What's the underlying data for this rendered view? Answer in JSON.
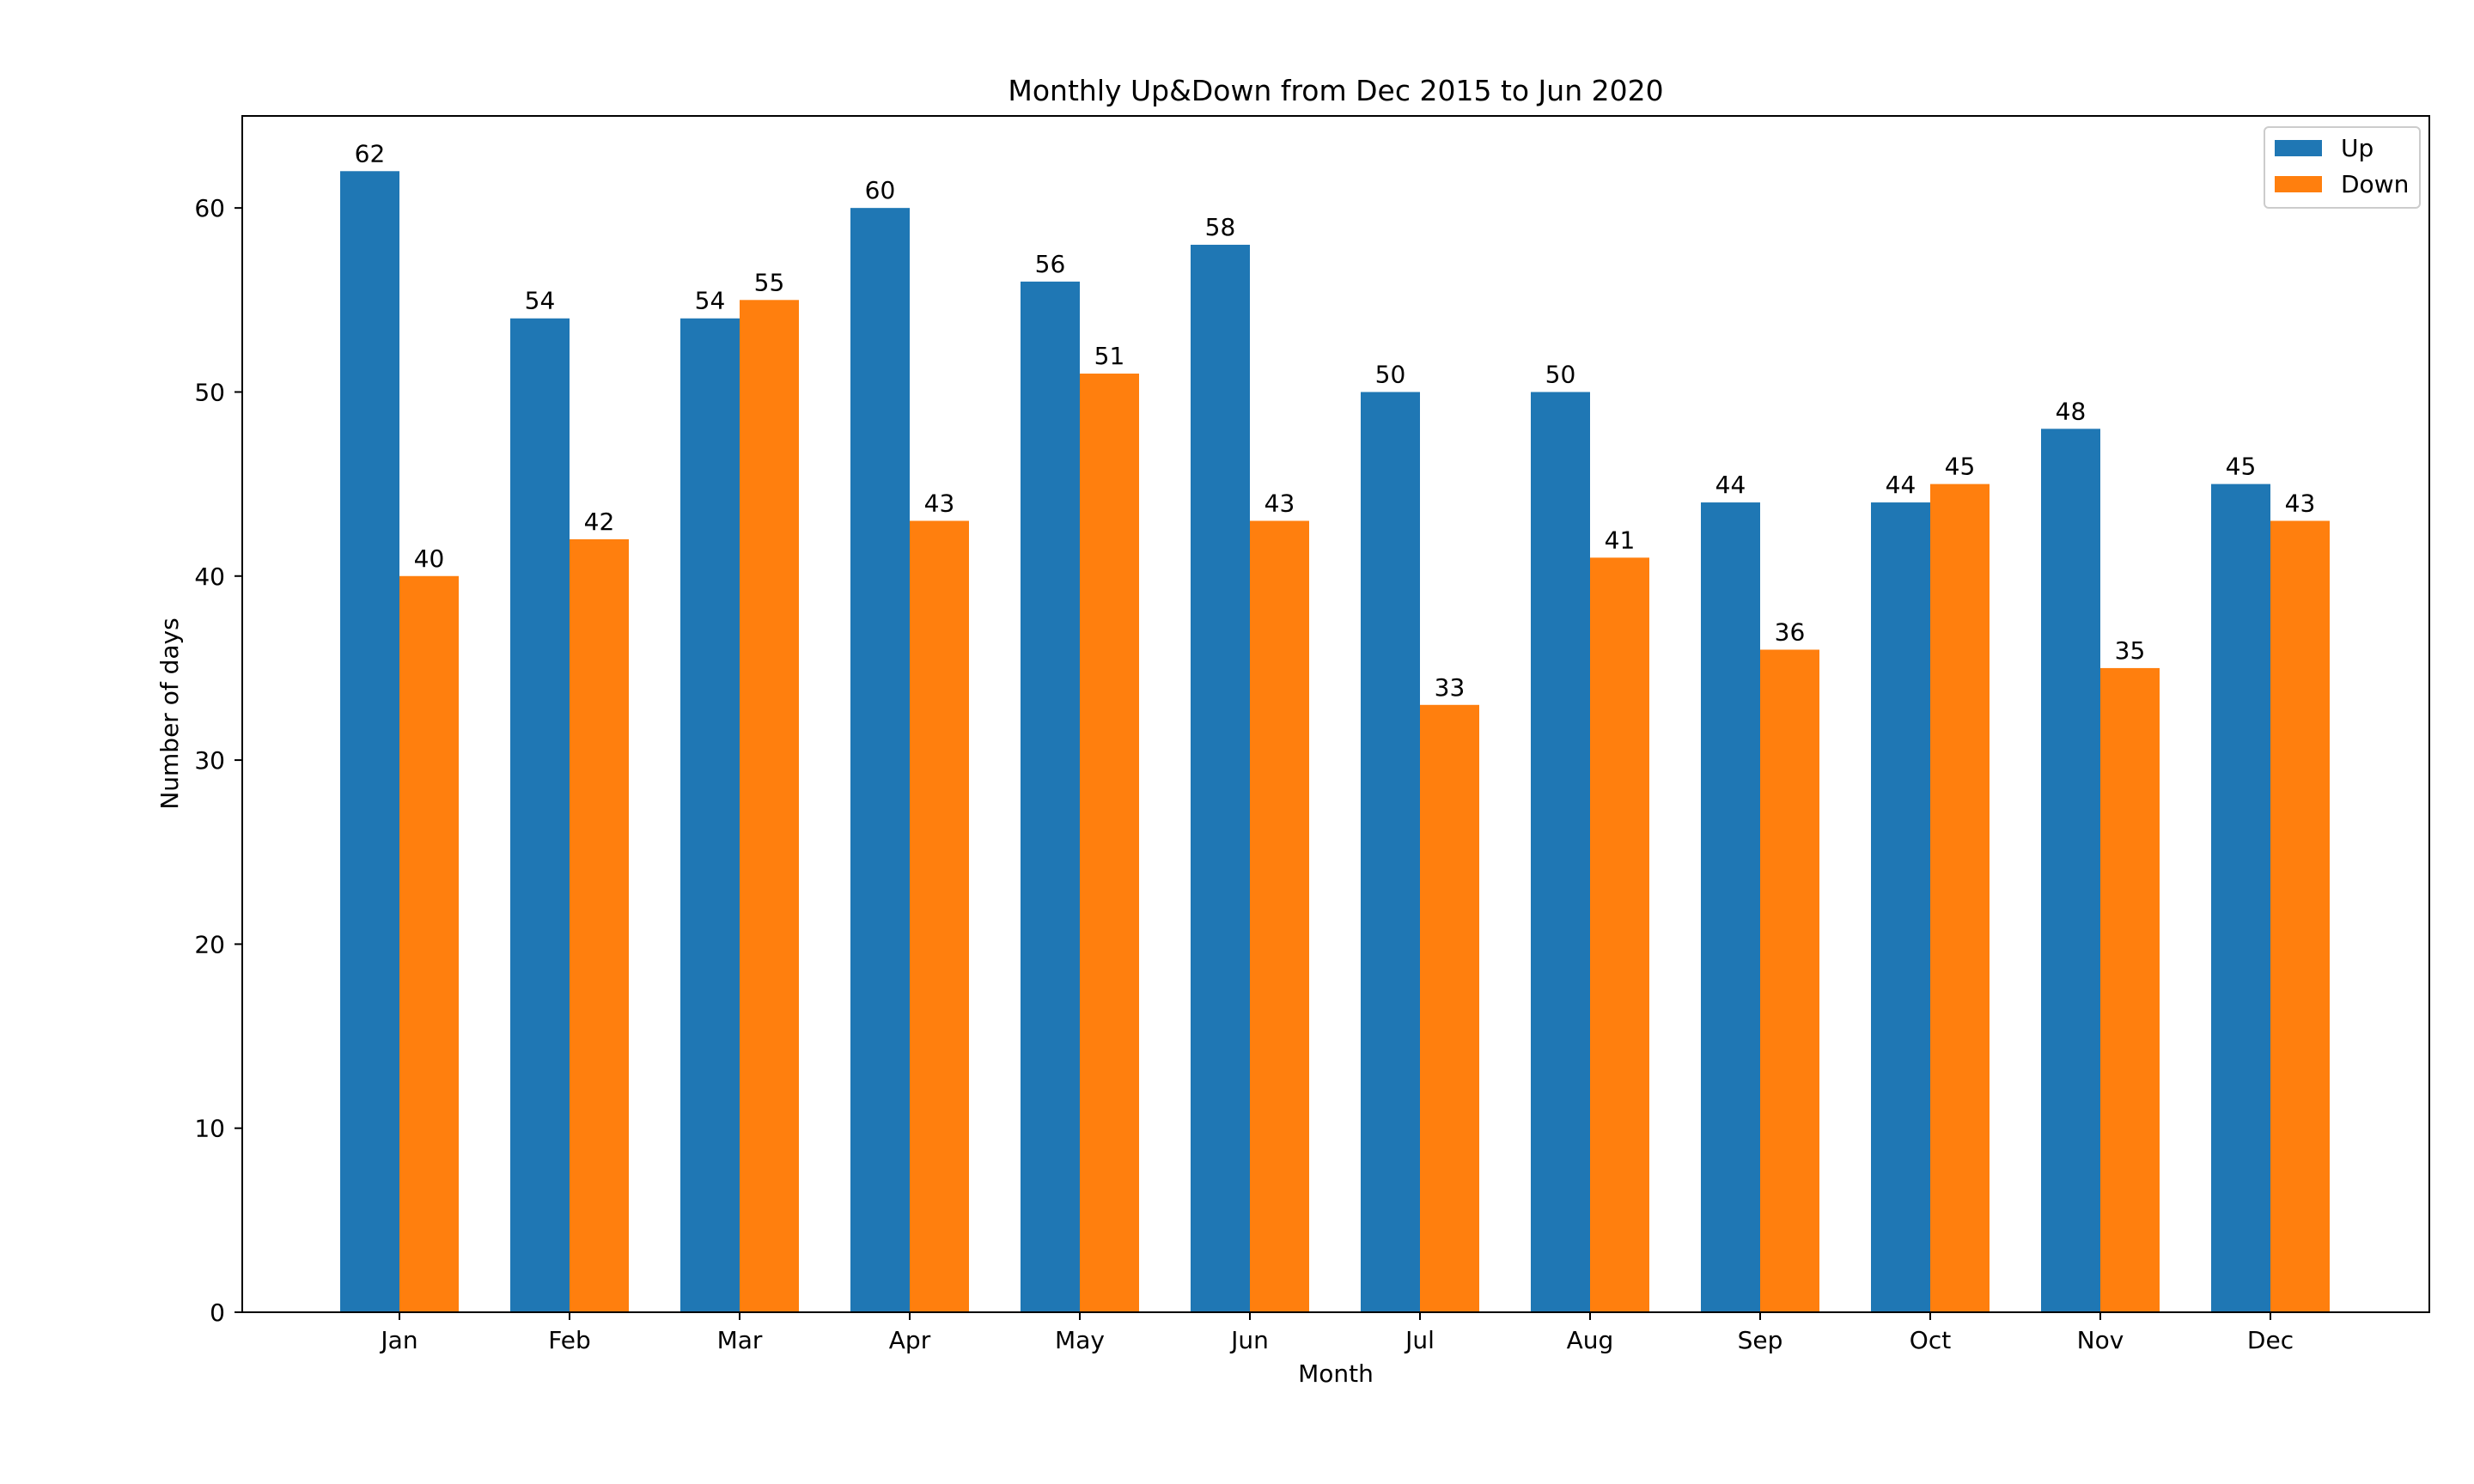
{
  "chart_data": {
    "type": "bar",
    "title": "Monthly Up&Down from Dec 2015 to Jun 2020",
    "xlabel": "Month",
    "ylabel": "Number of days",
    "categories": [
      "Jan",
      "Feb",
      "Mar",
      "Apr",
      "May",
      "Jun",
      "Jul",
      "Aug",
      "Sep",
      "Oct",
      "Nov",
      "Dec"
    ],
    "series": [
      {
        "name": "Up",
        "color": "#1f77b4",
        "values": [
          62,
          54,
          54,
          60,
          56,
          58,
          50,
          50,
          44,
          44,
          48,
          45
        ]
      },
      {
        "name": "Down",
        "color": "#ff7f0e",
        "values": [
          40,
          42,
          55,
          43,
          51,
          43,
          33,
          41,
          36,
          45,
          35,
          43
        ]
      }
    ],
    "ylim": [
      0,
      65
    ],
    "yticks": [
      0,
      10,
      20,
      30,
      40,
      50,
      60
    ],
    "grid": false,
    "legend_position": "top-right",
    "data_labels": true
  }
}
